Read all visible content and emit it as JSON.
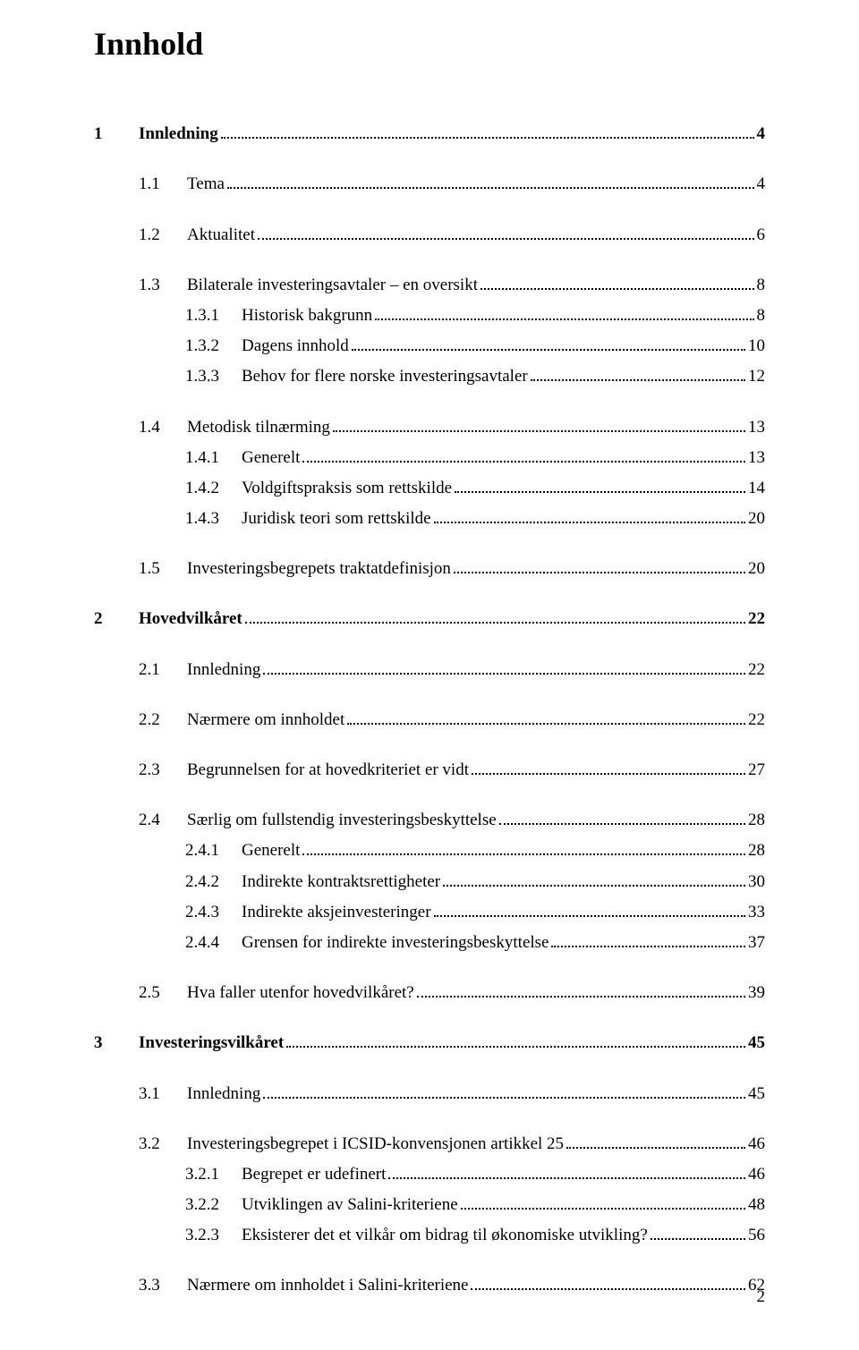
{
  "title": "Innhold",
  "page_number": "2",
  "colors": {
    "text": "#000000",
    "background": "#ffffff"
  },
  "typography": {
    "font_family": "Times New Roman",
    "title_fontsize": 36,
    "body_fontsize": 19
  },
  "toc": [
    {
      "level": 1,
      "num": "1",
      "label": "Innledning",
      "page": "4",
      "bold": true
    },
    {
      "level": 2,
      "num": "1.1",
      "label": "Tema",
      "page": "4"
    },
    {
      "level": 2,
      "num": "1.2",
      "label": "Aktualitet",
      "page": "6"
    },
    {
      "level": 2,
      "num": "1.3",
      "label": "Bilaterale investeringsavtaler – en oversikt",
      "page": "8",
      "tight": true
    },
    {
      "level": 3,
      "num": "1.3.1",
      "label": "Historisk bakgrunn",
      "page": "8",
      "tight": true
    },
    {
      "level": 3,
      "num": "1.3.2",
      "label": "Dagens innhold",
      "page": "10",
      "tight": true
    },
    {
      "level": 3,
      "num": "1.3.3",
      "label": "Behov for flere norske investeringsavtaler",
      "page": "12",
      "last_of_group": true
    },
    {
      "level": 2,
      "num": "1.4",
      "label": "Metodisk tilnærming",
      "page": "13",
      "tight": true
    },
    {
      "level": 3,
      "num": "1.4.1",
      "label": "Generelt",
      "page": "13",
      "tight": true
    },
    {
      "level": 3,
      "num": "1.4.2",
      "label": "Voldgiftspraksis som rettskilde",
      "page": "14",
      "tight": true
    },
    {
      "level": 3,
      "num": "1.4.3",
      "label": "Juridisk teori som rettskilde",
      "page": "20",
      "last_of_group": true
    },
    {
      "level": 2,
      "num": "1.5",
      "label": "Investeringsbegrepets traktatdefinisjon",
      "page": "20"
    },
    {
      "level": 1,
      "num": "2",
      "label": "Hovedvilkåret",
      "page": "22",
      "bold": true
    },
    {
      "level": 2,
      "num": "2.1",
      "label": "Innledning",
      "page": "22"
    },
    {
      "level": 2,
      "num": "2.2",
      "label": "Nærmere om innholdet",
      "page": "22"
    },
    {
      "level": 2,
      "num": "2.3",
      "label": "Begrunnelsen for at hovedkriteriet er vidt",
      "page": "27"
    },
    {
      "level": 2,
      "num": "2.4",
      "label": "Særlig om fullstendig investeringsbeskyttelse",
      "page": "28",
      "tight": true
    },
    {
      "level": 3,
      "num": "2.4.1",
      "label": "Generelt",
      "page": "28",
      "tight": true
    },
    {
      "level": 3,
      "num": "2.4.2",
      "label": "Indirekte kontraktsrettigheter",
      "page": "30",
      "tight": true
    },
    {
      "level": 3,
      "num": "2.4.3",
      "label": "Indirekte aksjeinvesteringer",
      "page": "33",
      "tight": true
    },
    {
      "level": 3,
      "num": "2.4.4",
      "label": "Grensen for indirekte investeringsbeskyttelse",
      "page": "37",
      "last_of_group": true
    },
    {
      "level": 2,
      "num": "2.5",
      "label": "Hva faller utenfor hovedvilkåret?",
      "page": "39"
    },
    {
      "level": 1,
      "num": "3",
      "label": "Investeringsvilkåret",
      "page": "45",
      "bold": true
    },
    {
      "level": 2,
      "num": "3.1",
      "label": "Innledning",
      "page": "45"
    },
    {
      "level": 2,
      "num": "3.2",
      "label": "Investeringsbegrepet i ICSID-konvensjonen artikkel 25",
      "page": "46",
      "tight": true
    },
    {
      "level": 3,
      "num": "3.2.1",
      "label": "Begrepet er udefinert",
      "page": "46",
      "tight": true
    },
    {
      "level": 3,
      "num": "3.2.2",
      "label": "Utviklingen av Salini-kriteriene",
      "page": "48",
      "tight": true
    },
    {
      "level": 3,
      "num": "3.2.3",
      "label": "Eksisterer det et vilkår om bidrag til økonomiske utvikling?",
      "page": "56",
      "last_of_group": true
    },
    {
      "level": 2,
      "num": "3.3",
      "label": "Nærmere om innholdet i Salini-kriteriene",
      "page": "62"
    }
  ]
}
